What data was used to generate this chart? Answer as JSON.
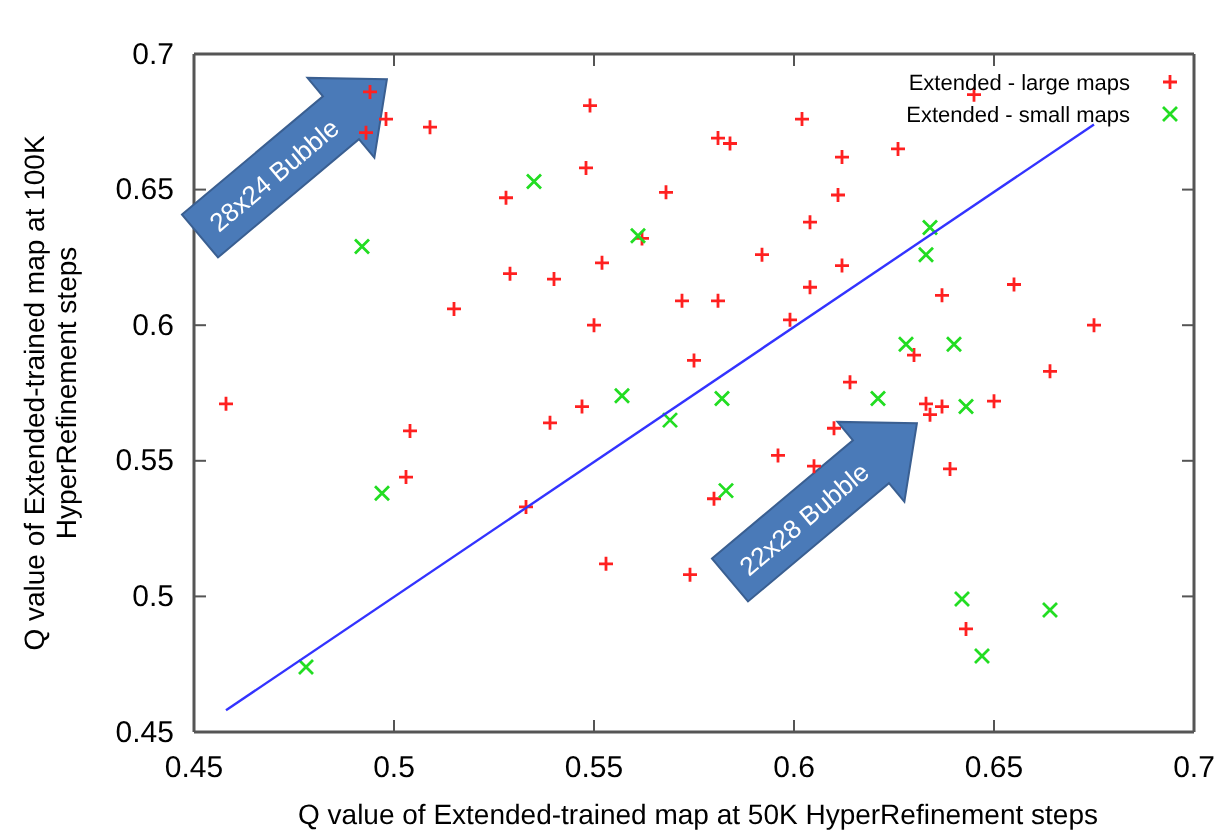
{
  "chart_data": {
    "type": "scatter",
    "xlabel": "Q value of Extended-trained map at 50K HyperRefinement steps",
    "ylabel": "Q value of Extended-trained map at 100K\nHyperRefinement steps",
    "xlim": [
      0.45,
      0.7
    ],
    "xticks": [
      0.45,
      0.5,
      0.55,
      0.6,
      0.65,
      0.7
    ],
    "ylim": [
      0.45,
      0.7
    ],
    "yticks": [
      0.45,
      0.5,
      0.55,
      0.6,
      0.65,
      0.7
    ],
    "grid": false,
    "legend": "top right",
    "annotations": [
      "28x24 Bubble",
      "22x28 Bubble"
    ],
    "series": [
      {
        "name": "Extended - large maps",
        "color": "#ff2020",
        "marker": "plus",
        "x": [
          0.494,
          0.498,
          0.493,
          0.509,
          0.549,
          0.581,
          0.548,
          0.528,
          0.568,
          0.562,
          0.552,
          0.529,
          0.54,
          0.515,
          0.55,
          0.572,
          0.581,
          0.575,
          0.645,
          0.602,
          0.584,
          0.612,
          0.626,
          0.611,
          0.604,
          0.592,
          0.612,
          0.604,
          0.599,
          0.637,
          0.655,
          0.675,
          0.63,
          0.664,
          0.614,
          0.458,
          0.504,
          0.503,
          0.533,
          0.539,
          0.547,
          0.553,
          0.574,
          0.58,
          0.633,
          0.634,
          0.637,
          0.65,
          0.61,
          0.596,
          0.605,
          0.639,
          0.643
        ],
        "values": [
          0.686,
          0.676,
          0.671,
          0.673,
          0.681,
          0.669,
          0.658,
          0.647,
          0.649,
          0.632,
          0.623,
          0.619,
          0.617,
          0.606,
          0.6,
          0.609,
          0.609,
          0.587,
          0.685,
          0.676,
          0.667,
          0.662,
          0.665,
          0.648,
          0.638,
          0.626,
          0.622,
          0.614,
          0.602,
          0.611,
          0.615,
          0.6,
          0.589,
          0.583,
          0.579,
          0.571,
          0.561,
          0.544,
          0.533,
          0.564,
          0.57,
          0.512,
          0.508,
          0.536,
          0.571,
          0.567,
          0.57,
          0.572,
          0.562,
          0.552,
          0.548,
          0.547,
          0.488
        ]
      },
      {
        "name": "Extended - small maps",
        "color": "#22dd22",
        "marker": "cross",
        "x": [
          0.535,
          0.492,
          0.561,
          0.634,
          0.633,
          0.628,
          0.64,
          0.497,
          0.478,
          0.557,
          0.569,
          0.582,
          0.621,
          0.643,
          0.583,
          0.642,
          0.664,
          0.647
        ],
        "values": [
          0.653,
          0.629,
          0.633,
          0.636,
          0.626,
          0.593,
          0.593,
          0.538,
          0.474,
          0.574,
          0.565,
          0.573,
          0.573,
          0.57,
          0.539,
          0.499,
          0.495,
          0.478
        ]
      },
      {
        "type": "line",
        "color": "#3333ff",
        "x": [
          0.458,
          0.675
        ],
        "values": [
          0.458,
          0.674
        ]
      }
    ]
  }
}
